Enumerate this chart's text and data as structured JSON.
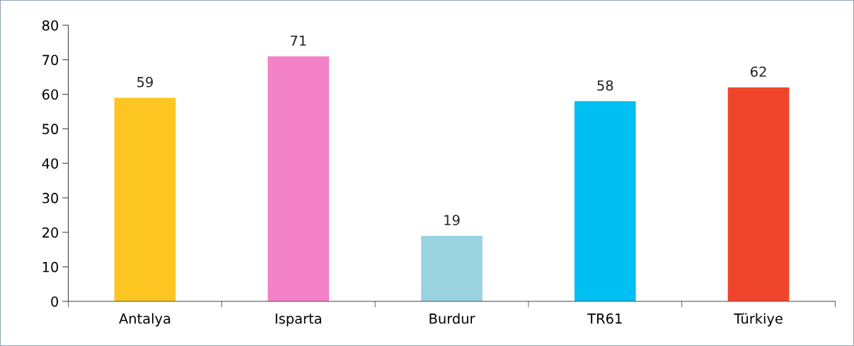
{
  "chart_data": {
    "type": "bar",
    "categories": [
      "Antalya",
      "Isparta",
      "Burdur",
      "TR61",
      "Türkiye"
    ],
    "values": [
      59,
      71,
      19,
      58,
      62
    ],
    "colors": [
      "#fdc521",
      "#f482c8",
      "#9ad3e0",
      "#00bff3",
      "#ef452c"
    ],
    "ylim": [
      0,
      80
    ],
    "yticks": [
      0,
      10,
      20,
      30,
      40,
      50,
      60,
      70,
      80
    ],
    "data_labels": true,
    "grid": false,
    "legend": false
  }
}
